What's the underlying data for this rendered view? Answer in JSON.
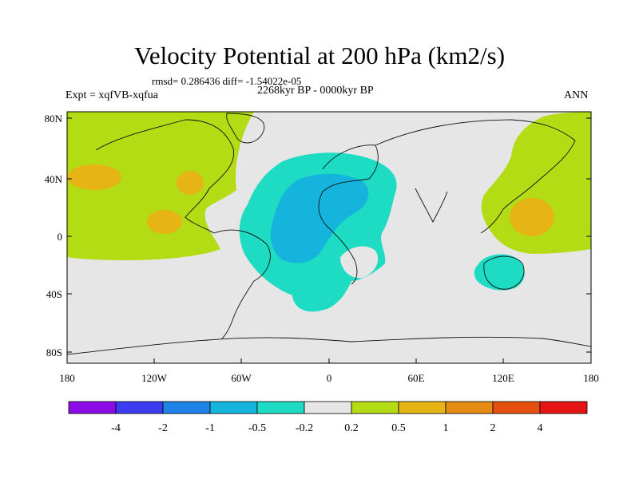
{
  "title": "Velocity Potential at 200 hPa (km2/s)",
  "stats_line": "rmsd= 0.286436 diff= -1.54022e-05",
  "period": "2268kyr BP - 0000kyr BP",
  "experiment": "Expt = xqfVB-xqfua",
  "season": "ANN",
  "lat_labels": [
    "80N",
    "40N",
    "0",
    "40S",
    "80S"
  ],
  "lon_labels": [
    "180",
    "120W",
    "60W",
    "0",
    "60E",
    "120E",
    "180"
  ],
  "colorbar": {
    "colors": [
      "#8c0ce6",
      "#3c3cf0",
      "#1e82e6",
      "#14b4dc",
      "#1edcc3",
      "#e6e6e6",
      "#b4dc14",
      "#e6b414",
      "#e68c14",
      "#e6500f",
      "#e61414"
    ],
    "labels": [
      "-4",
      "-2",
      "-1",
      "-0.5",
      "-0.2",
      "0.2",
      "0.5",
      "1",
      "2",
      "4"
    ]
  }
}
